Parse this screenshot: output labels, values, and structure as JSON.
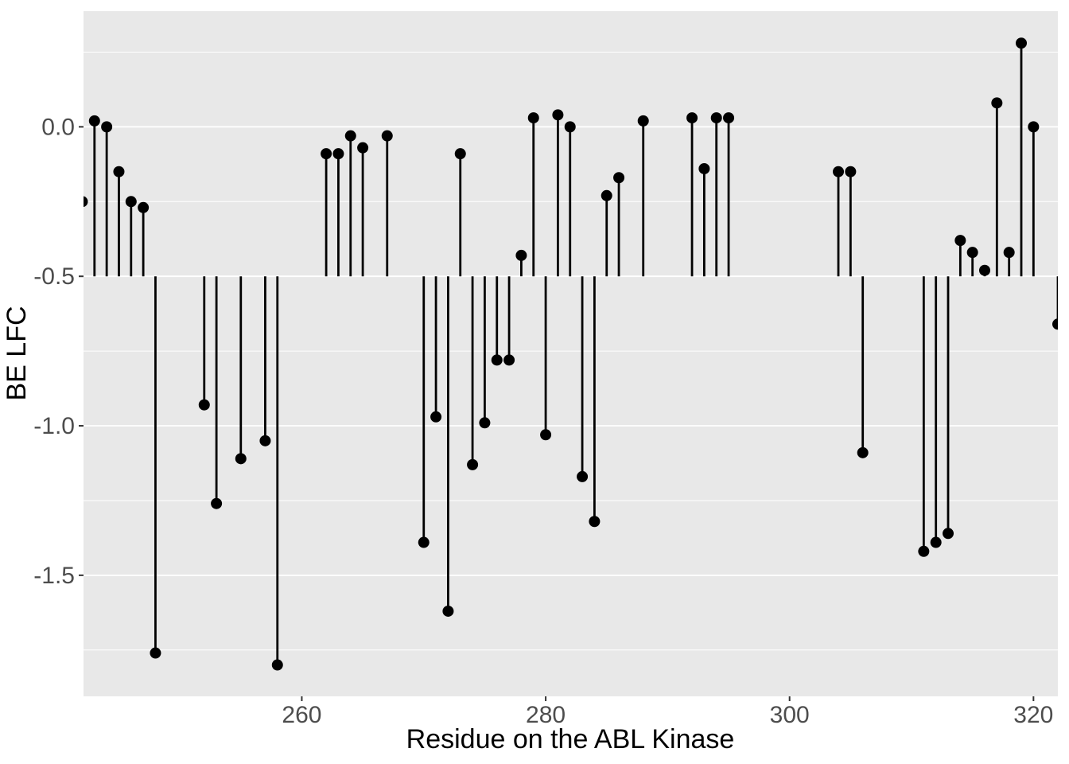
{
  "chart_data": {
    "type": "scatter",
    "variant": "lollipop-stem",
    "title": "",
    "xlabel": "Residue on the ABL Kinase",
    "ylabel": "BE LFC",
    "baseline": -0.5,
    "x": [
      242,
      243,
      244,
      245,
      246,
      247,
      248,
      252,
      253,
      255,
      257,
      258,
      262,
      263,
      264,
      265,
      267,
      270,
      271,
      272,
      273,
      274,
      275,
      276,
      277,
      278,
      279,
      280,
      281,
      282,
      283,
      284,
      285,
      286,
      288,
      292,
      293,
      294,
      295,
      304,
      305,
      306,
      311,
      312,
      313,
      314,
      315,
      316,
      317,
      318,
      319,
      320,
      322
    ],
    "y": [
      -0.25,
      0.02,
      0.0,
      -0.15,
      -0.25,
      -0.27,
      -1.76,
      -0.93,
      -1.26,
      -1.11,
      -1.05,
      -1.8,
      -0.09,
      -0.09,
      -0.03,
      -0.07,
      -0.03,
      -1.39,
      -0.97,
      -1.62,
      -0.09,
      -1.13,
      -0.99,
      -0.78,
      -0.78,
      -0.43,
      0.03,
      -1.03,
      0.04,
      0.0,
      -1.17,
      -1.32,
      -0.23,
      -0.17,
      0.02,
      0.03,
      -0.14,
      0.03,
      0.03,
      -0.15,
      -0.15,
      -1.09,
      -1.42,
      -1.39,
      -1.36,
      -0.38,
      -0.42,
      -0.48,
      0.08,
      -0.42,
      0.28,
      0.0,
      -0.66
    ],
    "x_ticks": [
      260,
      280,
      300,
      320
    ],
    "y_ticks": [
      0.0,
      -0.5,
      -1.0,
      -1.5
    ],
    "y_minor_gridlines": [
      0.25,
      -0.25,
      -0.75,
      -1.25,
      -1.75
    ],
    "xlim": [
      242.1,
      322.0
    ],
    "ylim": [
      -1.905,
      0.387
    ],
    "grid": "horizontal-only",
    "legend": "none",
    "colors": {
      "figure_background": "#ffffff",
      "panel_background": "#e8e8e8",
      "gridline": "#ffffff",
      "stem": "#000000",
      "point": "#000000",
      "tick_mark": "#333333",
      "axis_text": "#4d4d4d",
      "axis_title": "#000000"
    }
  }
}
